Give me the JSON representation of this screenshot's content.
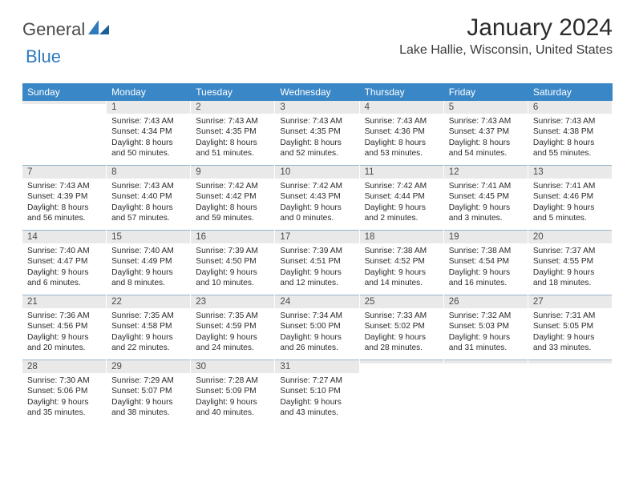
{
  "brand": {
    "text1": "General",
    "text2": "Blue"
  },
  "colors": {
    "header_bg": "#3a87c7",
    "daynum_bg": "#e9e9e9",
    "sep": "#3a77a8",
    "text": "#2b2b2b"
  },
  "title": "January 2024",
  "location": "Lake Hallie, Wisconsin, United States",
  "weekdays": [
    "Sunday",
    "Monday",
    "Tuesday",
    "Wednesday",
    "Thursday",
    "Friday",
    "Saturday"
  ],
  "weeks": [
    [
      {
        "n": "",
        "sr": "",
        "ss": "",
        "dl": ""
      },
      {
        "n": "1",
        "sr": "Sunrise: 7:43 AM",
        "ss": "Sunset: 4:34 PM",
        "dl": "Daylight: 8 hours and 50 minutes."
      },
      {
        "n": "2",
        "sr": "Sunrise: 7:43 AM",
        "ss": "Sunset: 4:35 PM",
        "dl": "Daylight: 8 hours and 51 minutes."
      },
      {
        "n": "3",
        "sr": "Sunrise: 7:43 AM",
        "ss": "Sunset: 4:35 PM",
        "dl": "Daylight: 8 hours and 52 minutes."
      },
      {
        "n": "4",
        "sr": "Sunrise: 7:43 AM",
        "ss": "Sunset: 4:36 PM",
        "dl": "Daylight: 8 hours and 53 minutes."
      },
      {
        "n": "5",
        "sr": "Sunrise: 7:43 AM",
        "ss": "Sunset: 4:37 PM",
        "dl": "Daylight: 8 hours and 54 minutes."
      },
      {
        "n": "6",
        "sr": "Sunrise: 7:43 AM",
        "ss": "Sunset: 4:38 PM",
        "dl": "Daylight: 8 hours and 55 minutes."
      }
    ],
    [
      {
        "n": "7",
        "sr": "Sunrise: 7:43 AM",
        "ss": "Sunset: 4:39 PM",
        "dl": "Daylight: 8 hours and 56 minutes."
      },
      {
        "n": "8",
        "sr": "Sunrise: 7:43 AM",
        "ss": "Sunset: 4:40 PM",
        "dl": "Daylight: 8 hours and 57 minutes."
      },
      {
        "n": "9",
        "sr": "Sunrise: 7:42 AM",
        "ss": "Sunset: 4:42 PM",
        "dl": "Daylight: 8 hours and 59 minutes."
      },
      {
        "n": "10",
        "sr": "Sunrise: 7:42 AM",
        "ss": "Sunset: 4:43 PM",
        "dl": "Daylight: 9 hours and 0 minutes."
      },
      {
        "n": "11",
        "sr": "Sunrise: 7:42 AM",
        "ss": "Sunset: 4:44 PM",
        "dl": "Daylight: 9 hours and 2 minutes."
      },
      {
        "n": "12",
        "sr": "Sunrise: 7:41 AM",
        "ss": "Sunset: 4:45 PM",
        "dl": "Daylight: 9 hours and 3 minutes."
      },
      {
        "n": "13",
        "sr": "Sunrise: 7:41 AM",
        "ss": "Sunset: 4:46 PM",
        "dl": "Daylight: 9 hours and 5 minutes."
      }
    ],
    [
      {
        "n": "14",
        "sr": "Sunrise: 7:40 AM",
        "ss": "Sunset: 4:47 PM",
        "dl": "Daylight: 9 hours and 6 minutes."
      },
      {
        "n": "15",
        "sr": "Sunrise: 7:40 AM",
        "ss": "Sunset: 4:49 PM",
        "dl": "Daylight: 9 hours and 8 minutes."
      },
      {
        "n": "16",
        "sr": "Sunrise: 7:39 AM",
        "ss": "Sunset: 4:50 PM",
        "dl": "Daylight: 9 hours and 10 minutes."
      },
      {
        "n": "17",
        "sr": "Sunrise: 7:39 AM",
        "ss": "Sunset: 4:51 PM",
        "dl": "Daylight: 9 hours and 12 minutes."
      },
      {
        "n": "18",
        "sr": "Sunrise: 7:38 AM",
        "ss": "Sunset: 4:52 PM",
        "dl": "Daylight: 9 hours and 14 minutes."
      },
      {
        "n": "19",
        "sr": "Sunrise: 7:38 AM",
        "ss": "Sunset: 4:54 PM",
        "dl": "Daylight: 9 hours and 16 minutes."
      },
      {
        "n": "20",
        "sr": "Sunrise: 7:37 AM",
        "ss": "Sunset: 4:55 PM",
        "dl": "Daylight: 9 hours and 18 minutes."
      }
    ],
    [
      {
        "n": "21",
        "sr": "Sunrise: 7:36 AM",
        "ss": "Sunset: 4:56 PM",
        "dl": "Daylight: 9 hours and 20 minutes."
      },
      {
        "n": "22",
        "sr": "Sunrise: 7:35 AM",
        "ss": "Sunset: 4:58 PM",
        "dl": "Daylight: 9 hours and 22 minutes."
      },
      {
        "n": "23",
        "sr": "Sunrise: 7:35 AM",
        "ss": "Sunset: 4:59 PM",
        "dl": "Daylight: 9 hours and 24 minutes."
      },
      {
        "n": "24",
        "sr": "Sunrise: 7:34 AM",
        "ss": "Sunset: 5:00 PM",
        "dl": "Daylight: 9 hours and 26 minutes."
      },
      {
        "n": "25",
        "sr": "Sunrise: 7:33 AM",
        "ss": "Sunset: 5:02 PM",
        "dl": "Daylight: 9 hours and 28 minutes."
      },
      {
        "n": "26",
        "sr": "Sunrise: 7:32 AM",
        "ss": "Sunset: 5:03 PM",
        "dl": "Daylight: 9 hours and 31 minutes."
      },
      {
        "n": "27",
        "sr": "Sunrise: 7:31 AM",
        "ss": "Sunset: 5:05 PM",
        "dl": "Daylight: 9 hours and 33 minutes."
      }
    ],
    [
      {
        "n": "28",
        "sr": "Sunrise: 7:30 AM",
        "ss": "Sunset: 5:06 PM",
        "dl": "Daylight: 9 hours and 35 minutes."
      },
      {
        "n": "29",
        "sr": "Sunrise: 7:29 AM",
        "ss": "Sunset: 5:07 PM",
        "dl": "Daylight: 9 hours and 38 minutes."
      },
      {
        "n": "30",
        "sr": "Sunrise: 7:28 AM",
        "ss": "Sunset: 5:09 PM",
        "dl": "Daylight: 9 hours and 40 minutes."
      },
      {
        "n": "31",
        "sr": "Sunrise: 7:27 AM",
        "ss": "Sunset: 5:10 PM",
        "dl": "Daylight: 9 hours and 43 minutes."
      },
      {
        "n": "",
        "sr": "",
        "ss": "",
        "dl": ""
      },
      {
        "n": "",
        "sr": "",
        "ss": "",
        "dl": ""
      },
      {
        "n": "",
        "sr": "",
        "ss": "",
        "dl": ""
      }
    ]
  ]
}
